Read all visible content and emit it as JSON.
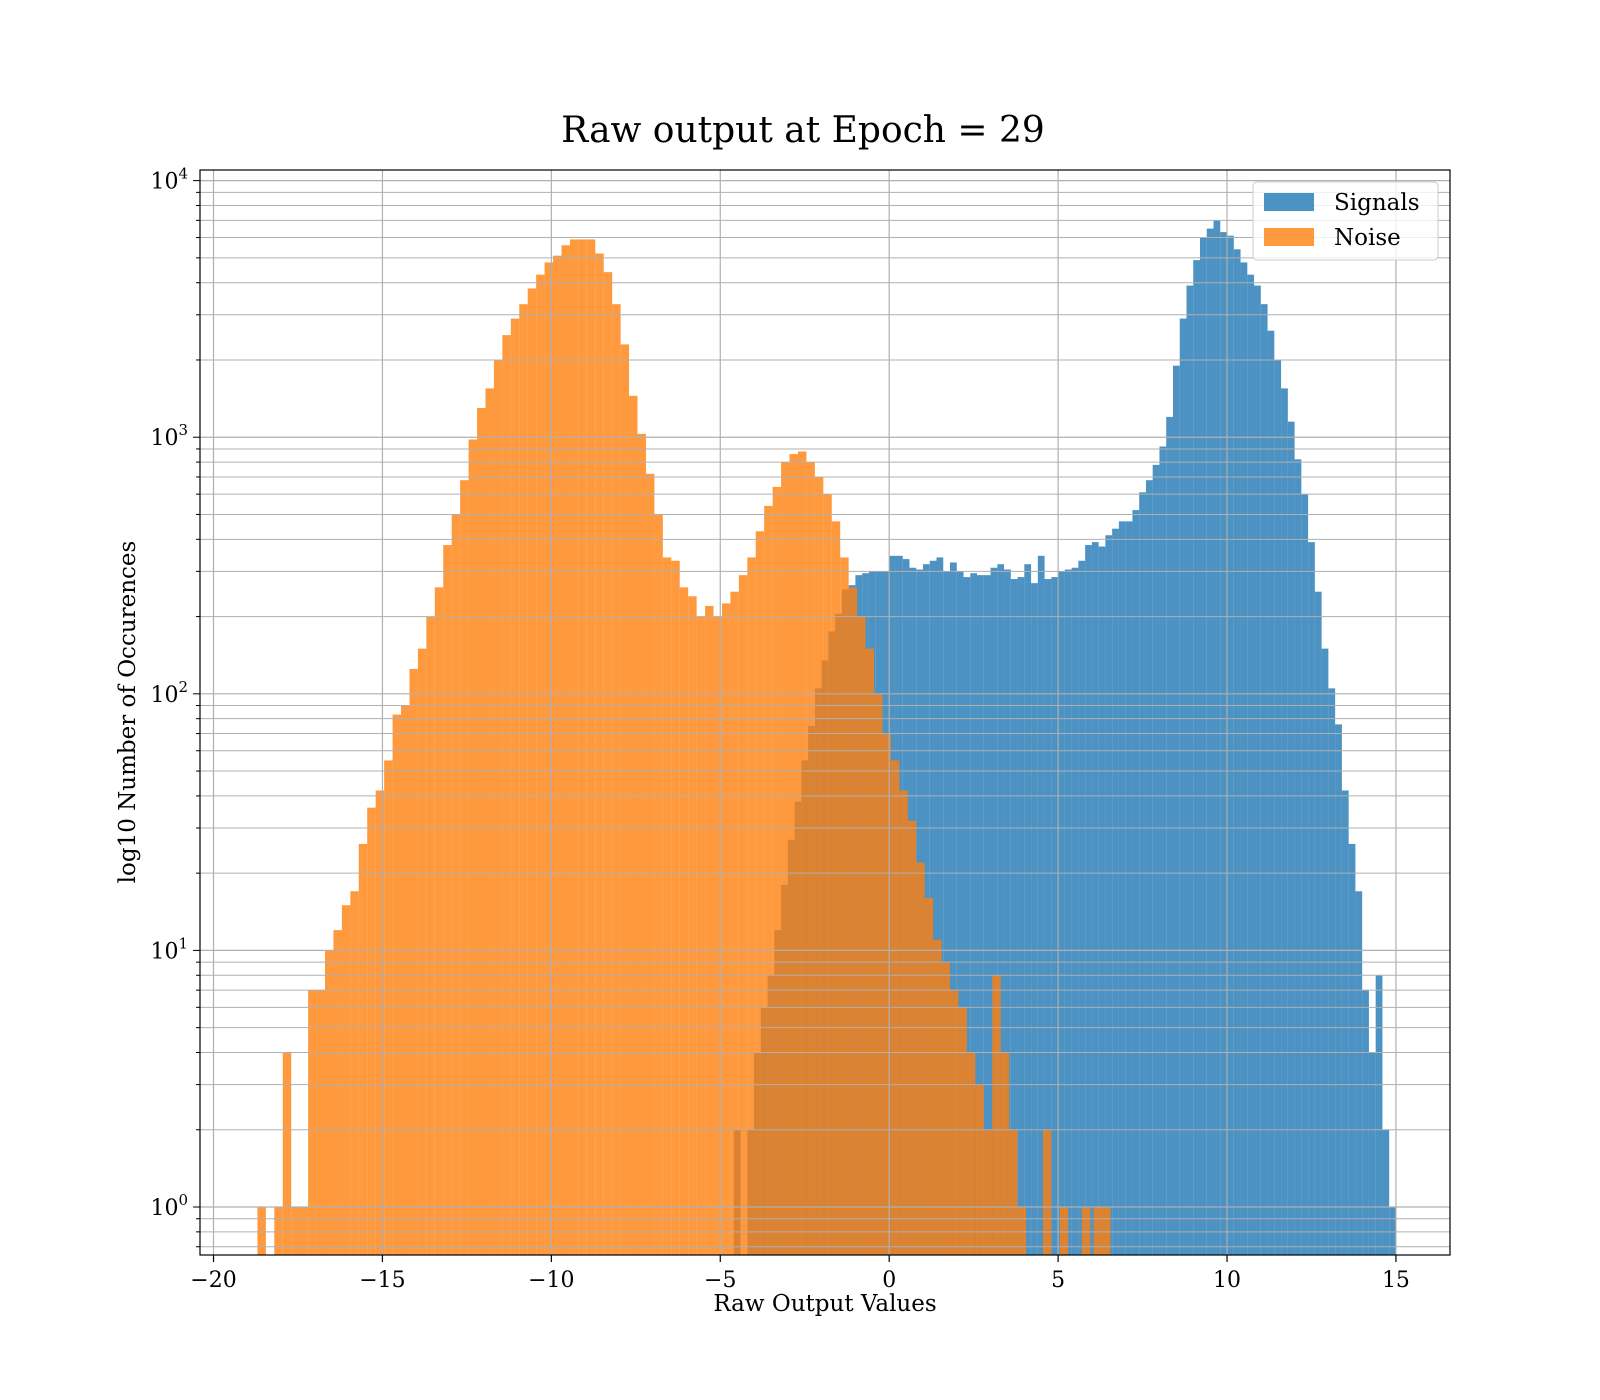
{
  "chart_data": {
    "type": "histogram",
    "title": "Raw output at Epoch = 29",
    "xlabel": "Raw Output Values",
    "ylabel": "log10 Number of Occurences",
    "xlim": [
      -20.4,
      16.6
    ],
    "ylim": [
      0.65,
      11000
    ],
    "yscale": "log",
    "grid": true,
    "legend_position": "top-right",
    "x_ticks": [
      {
        "value": -20,
        "label": "−20"
      },
      {
        "value": -15,
        "label": "−15"
      },
      {
        "value": -10,
        "label": "−10"
      },
      {
        "value": -5,
        "label": "−5"
      },
      {
        "value": 0,
        "label": "0"
      },
      {
        "value": 5,
        "label": "5"
      },
      {
        "value": 10,
        "label": "10"
      },
      {
        "value": 15,
        "label": "15"
      }
    ],
    "y_ticks": [
      {
        "value": 1,
        "base": "10",
        "exp": "0"
      },
      {
        "value": 10,
        "base": "10",
        "exp": "1"
      },
      {
        "value": 100,
        "base": "10",
        "exp": "2"
      },
      {
        "value": 1000,
        "base": "10",
        "exp": "3"
      },
      {
        "value": 10000,
        "base": "10",
        "exp": "4"
      }
    ],
    "series": [
      {
        "name": "Signals",
        "color": "#1f77b4",
        "opacity": 0.8,
        "bins": [
          [
            -4.6,
            -4.4,
            2
          ],
          [
            -4.2,
            -4.0,
            2
          ],
          [
            -4.0,
            -3.8,
            4
          ],
          [
            -3.8,
            -3.6,
            6
          ],
          [
            -3.6,
            -3.4,
            8
          ],
          [
            -3.4,
            -3.2,
            12
          ],
          [
            -3.2,
            -3.0,
            18
          ],
          [
            -3.0,
            -2.8,
            27
          ],
          [
            -2.8,
            -2.6,
            38
          ],
          [
            -2.6,
            -2.4,
            55
          ],
          [
            -2.4,
            -2.2,
            75
          ],
          [
            -2.2,
            -2.0,
            105
          ],
          [
            -2.0,
            -1.8,
            135
          ],
          [
            -1.8,
            -1.6,
            175
          ],
          [
            -1.6,
            -1.4,
            205
          ],
          [
            -1.4,
            -1.2,
            255
          ],
          [
            -1.2,
            -1.0,
            265
          ],
          [
            -1.0,
            -0.8,
            290
          ],
          [
            -0.8,
            -0.6,
            295
          ],
          [
            -0.6,
            -0.4,
            300
          ],
          [
            -0.4,
            -0.2,
            300
          ],
          [
            -0.2,
            0.0,
            300
          ],
          [
            0.0,
            0.2,
            345
          ],
          [
            0.2,
            0.4,
            345
          ],
          [
            0.4,
            0.6,
            335
          ],
          [
            0.6,
            0.8,
            310
          ],
          [
            0.8,
            1.0,
            305
          ],
          [
            1.0,
            1.2,
            320
          ],
          [
            1.2,
            1.4,
            330
          ],
          [
            1.4,
            1.6,
            340
          ],
          [
            1.6,
            1.8,
            300
          ],
          [
            1.8,
            2.0,
            325
          ],
          [
            2.0,
            2.2,
            300
          ],
          [
            2.2,
            2.4,
            285
          ],
          [
            2.4,
            2.6,
            295
          ],
          [
            2.6,
            2.8,
            290
          ],
          [
            2.8,
            3.0,
            290
          ],
          [
            3.0,
            3.2,
            310
          ],
          [
            3.2,
            3.4,
            320
          ],
          [
            3.4,
            3.6,
            305
          ],
          [
            3.6,
            3.8,
            280
          ],
          [
            3.8,
            4.0,
            285
          ],
          [
            4.0,
            4.2,
            320
          ],
          [
            4.2,
            4.4,
            270
          ],
          [
            4.4,
            4.6,
            345
          ],
          [
            4.6,
            4.8,
            280
          ],
          [
            4.8,
            5.0,
            285
          ],
          [
            5.0,
            5.2,
            300
          ],
          [
            5.2,
            5.4,
            305
          ],
          [
            5.4,
            5.6,
            310
          ],
          [
            5.6,
            5.8,
            330
          ],
          [
            5.8,
            6.0,
            380
          ],
          [
            6.0,
            6.2,
            390
          ],
          [
            6.2,
            6.4,
            375
          ],
          [
            6.4,
            6.6,
            415
          ],
          [
            6.6,
            6.8,
            440
          ],
          [
            6.8,
            7.0,
            470
          ],
          [
            7.0,
            7.2,
            470
          ],
          [
            7.2,
            7.4,
            520
          ],
          [
            7.4,
            7.6,
            610
          ],
          [
            7.6,
            7.8,
            680
          ],
          [
            7.8,
            8.0,
            780
          ],
          [
            8.0,
            8.2,
            920
          ],
          [
            8.2,
            8.4,
            1200
          ],
          [
            8.4,
            8.6,
            1900
          ],
          [
            8.6,
            8.8,
            2900
          ],
          [
            8.8,
            9.0,
            3900
          ],
          [
            9.0,
            9.2,
            4900
          ],
          [
            9.2,
            9.4,
            6000
          ],
          [
            9.4,
            9.6,
            6500
          ],
          [
            9.6,
            9.8,
            7000
          ],
          [
            9.8,
            10.0,
            6300
          ],
          [
            10.0,
            10.2,
            6100
          ],
          [
            10.2,
            10.4,
            5400
          ],
          [
            10.4,
            10.6,
            4800
          ],
          [
            10.6,
            10.8,
            4300
          ],
          [
            10.8,
            11.0,
            3900
          ],
          [
            11.0,
            11.2,
            3300
          ],
          [
            11.2,
            11.4,
            2600
          ],
          [
            11.4,
            11.6,
            2000
          ],
          [
            11.6,
            11.8,
            1550
          ],
          [
            11.8,
            12.0,
            1150
          ],
          [
            12.0,
            12.2,
            820
          ],
          [
            12.2,
            12.4,
            600
          ],
          [
            12.4,
            12.6,
            390
          ],
          [
            12.6,
            12.8,
            250
          ],
          [
            12.8,
            13.0,
            150
          ],
          [
            13.0,
            13.2,
            105
          ],
          [
            13.2,
            13.4,
            76
          ],
          [
            13.4,
            13.6,
            42
          ],
          [
            13.6,
            13.8,
            26
          ],
          [
            13.8,
            14.0,
            17
          ],
          [
            14.0,
            14.2,
            7
          ],
          [
            14.2,
            14.4,
            4
          ],
          [
            14.4,
            14.6,
            8
          ],
          [
            14.6,
            14.8,
            2
          ],
          [
            14.8,
            15.0,
            1
          ]
        ]
      },
      {
        "name": "Noise",
        "color": "#ff7f0e",
        "opacity": 0.8,
        "bins": [
          [
            -18.7,
            -18.45,
            1
          ],
          [
            -18.2,
            -17.95,
            1
          ],
          [
            -17.95,
            -17.7,
            4
          ],
          [
            -17.7,
            -17.2,
            1
          ],
          [
            -17.2,
            -16.95,
            7
          ],
          [
            -16.95,
            -16.7,
            7
          ],
          [
            -16.7,
            -16.45,
            10
          ],
          [
            -16.45,
            -16.2,
            12
          ],
          [
            -16.2,
            -15.95,
            15
          ],
          [
            -15.95,
            -15.7,
            17
          ],
          [
            -15.7,
            -15.45,
            26
          ],
          [
            -15.45,
            -15.2,
            36
          ],
          [
            -15.2,
            -14.95,
            42
          ],
          [
            -14.95,
            -14.7,
            55
          ],
          [
            -14.7,
            -14.45,
            83
          ],
          [
            -14.45,
            -14.2,
            90
          ],
          [
            -14.2,
            -13.95,
            125
          ],
          [
            -13.95,
            -13.7,
            150
          ],
          [
            -13.7,
            -13.45,
            200
          ],
          [
            -13.45,
            -13.2,
            260
          ],
          [
            -13.2,
            -12.95,
            380
          ],
          [
            -12.95,
            -12.7,
            500
          ],
          [
            -12.7,
            -12.45,
            680
          ],
          [
            -12.45,
            -12.2,
            980
          ],
          [
            -12.2,
            -11.95,
            1300
          ],
          [
            -11.95,
            -11.7,
            1550
          ],
          [
            -11.7,
            -11.45,
            2000
          ],
          [
            -11.45,
            -11.2,
            2500
          ],
          [
            -11.2,
            -10.95,
            2900
          ],
          [
            -10.95,
            -10.7,
            3300
          ],
          [
            -10.7,
            -10.45,
            3800
          ],
          [
            -10.45,
            -10.2,
            4300
          ],
          [
            -10.2,
            -9.95,
            4800
          ],
          [
            -9.95,
            -9.7,
            5100
          ],
          [
            -9.7,
            -9.45,
            5600
          ],
          [
            -9.45,
            -9.2,
            5900
          ],
          [
            -9.2,
            -8.95,
            5900
          ],
          [
            -8.95,
            -8.7,
            5900
          ],
          [
            -8.7,
            -8.45,
            5200
          ],
          [
            -8.45,
            -8.2,
            4400
          ],
          [
            -8.2,
            -7.95,
            3300
          ],
          [
            -7.95,
            -7.7,
            2300
          ],
          [
            -7.7,
            -7.45,
            1450
          ],
          [
            -7.45,
            -7.2,
            1030
          ],
          [
            -7.2,
            -6.95,
            720
          ],
          [
            -6.95,
            -6.7,
            500
          ],
          [
            -6.7,
            -6.45,
            340
          ],
          [
            -6.45,
            -6.2,
            330
          ],
          [
            -6.2,
            -5.95,
            260
          ],
          [
            -5.95,
            -5.7,
            240
          ],
          [
            -5.7,
            -5.45,
            200
          ],
          [
            -5.45,
            -5.2,
            220
          ],
          [
            -5.2,
            -4.95,
            200
          ],
          [
            -4.95,
            -4.7,
            225
          ],
          [
            -4.7,
            -4.45,
            250
          ],
          [
            -4.45,
            -4.2,
            290
          ],
          [
            -4.2,
            -3.95,
            340
          ],
          [
            -3.95,
            -3.7,
            430
          ],
          [
            -3.7,
            -3.45,
            540
          ],
          [
            -3.45,
            -3.2,
            640
          ],
          [
            -3.2,
            -2.95,
            800
          ],
          [
            -2.95,
            -2.7,
            860
          ],
          [
            -2.7,
            -2.45,
            880
          ],
          [
            -2.45,
            -2.2,
            800
          ],
          [
            -2.2,
            -1.95,
            700
          ],
          [
            -1.95,
            -1.7,
            600
          ],
          [
            -1.7,
            -1.45,
            470
          ],
          [
            -1.45,
            -1.2,
            340
          ],
          [
            -1.2,
            -0.95,
            260
          ],
          [
            -0.95,
            -0.7,
            200
          ],
          [
            -0.7,
            -0.45,
            150
          ],
          [
            -0.45,
            -0.2,
            100
          ],
          [
            -0.2,
            0.05,
            70
          ],
          [
            0.05,
            0.3,
            55
          ],
          [
            0.3,
            0.55,
            42
          ],
          [
            0.55,
            0.8,
            32
          ],
          [
            0.8,
            1.05,
            22
          ],
          [
            1.05,
            1.3,
            16
          ],
          [
            1.3,
            1.55,
            11
          ],
          [
            1.55,
            1.8,
            9
          ],
          [
            1.8,
            2.05,
            7
          ],
          [
            2.05,
            2.3,
            6
          ],
          [
            2.3,
            2.55,
            4
          ],
          [
            2.55,
            2.8,
            3
          ],
          [
            2.8,
            3.05,
            2
          ],
          [
            3.05,
            3.3,
            8
          ],
          [
            3.3,
            3.55,
            4
          ],
          [
            3.55,
            3.8,
            2
          ],
          [
            3.8,
            4.05,
            1
          ],
          [
            4.55,
            4.8,
            2
          ],
          [
            5.05,
            5.3,
            1
          ],
          [
            5.7,
            5.95,
            1
          ],
          [
            6.05,
            6.3,
            1
          ],
          [
            6.3,
            6.55,
            1
          ]
        ]
      }
    ]
  }
}
